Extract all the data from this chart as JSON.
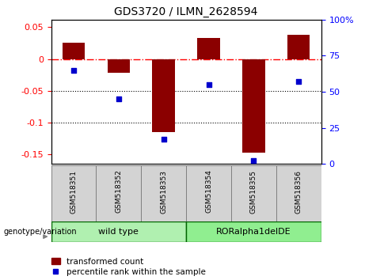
{
  "title": "GDS3720 / ILMN_2628594",
  "samples": [
    "GSM518351",
    "GSM518352",
    "GSM518353",
    "GSM518354",
    "GSM518355",
    "GSM518356"
  ],
  "bar_values": [
    0.025,
    -0.022,
    -0.115,
    0.033,
    -0.148,
    0.038
  ],
  "dot_values_pct": [
    65,
    45,
    17,
    55,
    2,
    57
  ],
  "bar_color": "#8B0000",
  "dot_color": "#0000CD",
  "ylim_left": [
    -0.165,
    0.062
  ],
  "ylim_right": [
    0,
    100
  ],
  "yticks_left": [
    0.05,
    0.0,
    -0.05,
    -0.1,
    -0.15
  ],
  "yticks_right": [
    100,
    75,
    50,
    25,
    0
  ],
  "dotted_lines": [
    -0.05,
    -0.1
  ],
  "bar_width": 0.5,
  "wt_color": "#b0f0b0",
  "ror_color": "#90ee90",
  "label_bg": "#d3d3d3",
  "legend_items": [
    "transformed count",
    "percentile rank within the sample"
  ],
  "group_border_color": "#006400",
  "label_border_color": "#808080"
}
